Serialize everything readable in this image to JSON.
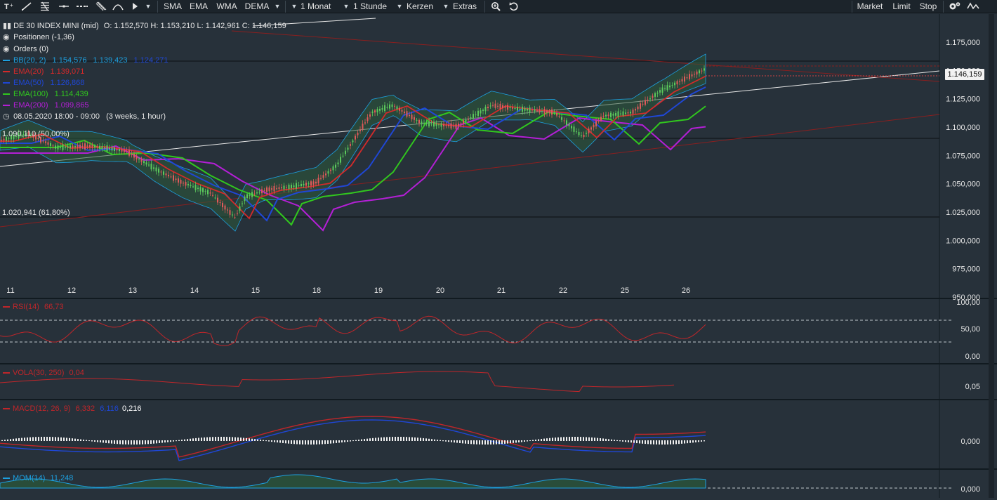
{
  "toolbar": {
    "left_icons": [
      "text-tool-icon",
      "trendline-icon",
      "fibonacci-icon",
      "horizontal-line-icon",
      "dotted-line-icon",
      "channel-icon",
      "curve-icon",
      "cursor-icon",
      "tools-dropdown-icon"
    ],
    "indicators": [
      "SMA",
      "EMA",
      "WMA",
      "DEMA"
    ],
    "period": "1 Monat",
    "interval": "1 Stunde",
    "chart_type": "Kerzen",
    "extras": "Extras",
    "orders": [
      "Market",
      "Limit",
      "Stop"
    ]
  },
  "instrument": {
    "name": "DE 30 INDEX MINI (mid)",
    "ohlc": "O: 1.152,570  H: 1.153,210  L: 1.142,961  C: 1.146,159",
    "positions": "Positionen (-1,36)",
    "orders": "Orders (0)",
    "date": "08.05.2020 18:00 - 09:00",
    "range": "(3 weeks, 1 hour)",
    "last_price": "1.146,159"
  },
  "legend": [
    {
      "label": "BB(20, 2)",
      "values": [
        "1.154,576",
        "1.139,423",
        "1.124,271"
      ],
      "color": "#1da0e0"
    },
    {
      "label": "EMA(20)",
      "values": [
        "1.139,071"
      ],
      "color": "#d42a2a"
    },
    {
      "label": "EMA(50)",
      "values": [
        "1.126,868"
      ],
      "color": "#1f47d6"
    },
    {
      "label": "EMA(100)",
      "values": [
        "1.114,439"
      ],
      "color": "#31c71e"
    },
    {
      "label": "EMA(200)",
      "values": [
        "1.099,865"
      ],
      "color": "#b41fd6"
    }
  ],
  "fib_labels": [
    "1.090,110 (50,00%)",
    "1.020,941 (61,80%)"
  ],
  "price_axis": [
    "1.175,000",
    "1.150,000",
    "1.125,000",
    "1.100,000",
    "1.075,000",
    "1.050,000",
    "1.025,000",
    "1.000,000",
    "975,000",
    "950,000"
  ],
  "date_axis": [
    "11",
    "12",
    "13",
    "14",
    "15",
    "18",
    "19",
    "20",
    "21",
    "22",
    "25",
    "26"
  ],
  "panels": {
    "rsi": {
      "label": "RSI(14)",
      "value": "66,73",
      "axis": [
        "100,00",
        "50,00",
        "0,00"
      ],
      "color": "#c0262a"
    },
    "vola": {
      "label": "VOLA(30, 250)",
      "value": "0,04",
      "axis": [
        "0,05"
      ],
      "color": "#c0262a"
    },
    "macd": {
      "label": "MACD(12, 26, 9)",
      "value1": "6,332",
      "value2": "6,116",
      "value3": "0,216",
      "axis": [
        "0,000"
      ]
    },
    "mom": {
      "label": "MOM(14)",
      "value": "11,248",
      "axis": [
        "0,000"
      ],
      "color": "#1da0e0"
    }
  }
}
